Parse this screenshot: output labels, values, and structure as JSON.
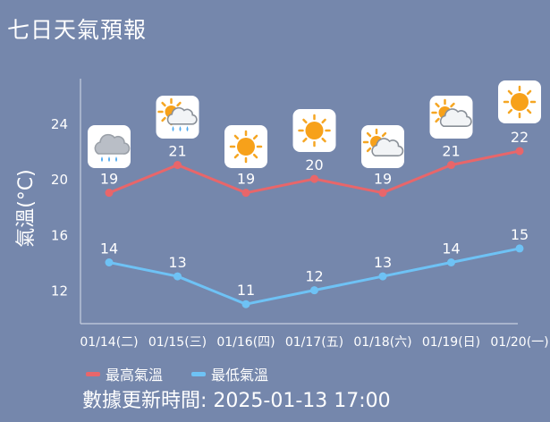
{
  "title": "七日天氣預報",
  "chart_data": {
    "type": "line",
    "ylabel": "氣溫(°C)",
    "yticks": [
      12,
      16,
      20,
      24
    ],
    "ylim": [
      9.6,
      27.2
    ],
    "grid": false,
    "categories": [
      "01/14(二)",
      "01/15(三)",
      "01/16(四)",
      "01/17(五)",
      "01/18(六)",
      "01/19(日)",
      "01/20(一)"
    ],
    "weather_icons": [
      "rain-cloud-icon",
      "partly-cloudy-rain-icon",
      "sun-icon",
      "sun-icon",
      "partly-cloudy-icon",
      "partly-cloudy-icon",
      "sun-icon"
    ],
    "series": [
      {
        "name": "最高氣溫",
        "color": "#e8666a",
        "values": [
          19,
          21,
          19,
          20,
          19,
          21,
          22
        ]
      },
      {
        "name": "最低氣溫",
        "color": "#6ec2f5",
        "values": [
          14,
          13,
          11,
          12,
          13,
          14,
          15
        ]
      }
    ]
  },
  "legend": {
    "high": "最高氣溫",
    "low": "最低氣溫"
  },
  "updated": "數據更新時間: 2025-01-13 17:00"
}
